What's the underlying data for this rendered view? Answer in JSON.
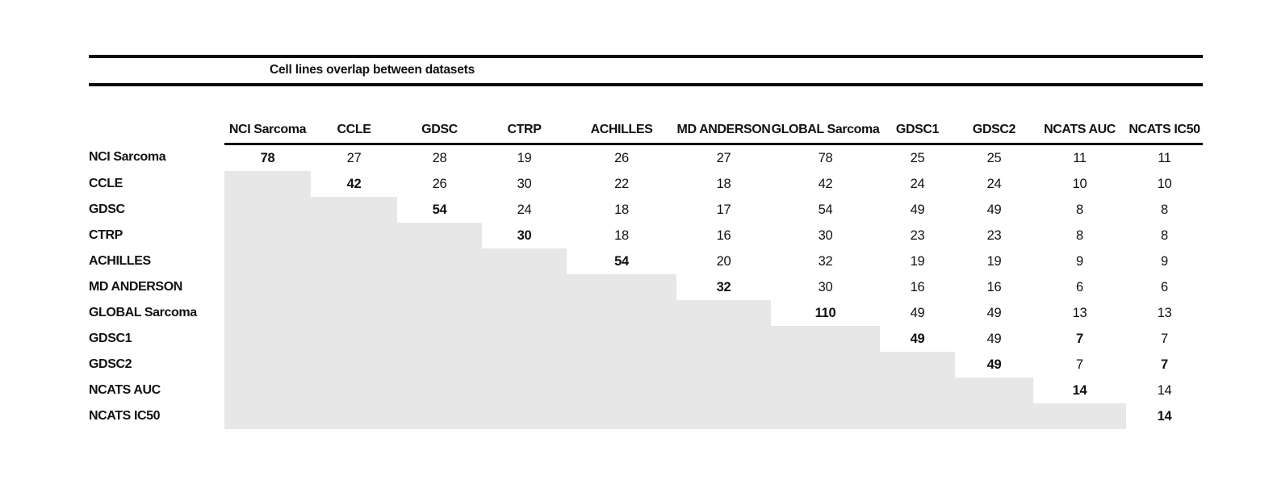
{
  "chart_data": {
    "type": "table",
    "title": "Cell lines overlap between datasets",
    "columns": [
      "NCI Sarcoma",
      "CCLE",
      "GDSC",
      "CTRP",
      "ACHILLES",
      "MD ANDERSON",
      "GLOBAL Sarcoma",
      "GDSC1",
      "GDSC2",
      "NCATS AUC",
      "NCATS IC50"
    ],
    "row_labels": [
      "NCI Sarcoma",
      "CCLE",
      "GDSC",
      "CTRP",
      "ACHILLES",
      "MD ANDERSON",
      "GLOBAL Sarcoma",
      "GDSC1",
      "GDSC2",
      "NCATS AUC",
      "NCATS IC50"
    ],
    "matrix": [
      [
        78,
        27,
        28,
        19,
        26,
        27,
        78,
        25,
        25,
        11,
        11
      ],
      [
        null,
        42,
        26,
        30,
        22,
        18,
        42,
        24,
        24,
        10,
        10
      ],
      [
        null,
        null,
        54,
        24,
        18,
        17,
        54,
        49,
        49,
        8,
        8
      ],
      [
        null,
        null,
        null,
        30,
        18,
        16,
        30,
        23,
        23,
        8,
        8
      ],
      [
        null,
        null,
        null,
        null,
        54,
        20,
        32,
        19,
        19,
        9,
        9
      ],
      [
        null,
        null,
        null,
        null,
        null,
        32,
        30,
        16,
        16,
        6,
        6
      ],
      [
        null,
        null,
        null,
        null,
        null,
        null,
        110,
        49,
        49,
        13,
        13
      ],
      [
        null,
        null,
        null,
        null,
        null,
        null,
        null,
        49,
        49,
        7,
        7
      ],
      [
        null,
        null,
        null,
        null,
        null,
        null,
        null,
        null,
        49,
        7,
        7
      ],
      [
        null,
        null,
        null,
        null,
        null,
        null,
        null,
        null,
        null,
        14,
        14
      ],
      [
        null,
        null,
        null,
        null,
        null,
        null,
        null,
        null,
        null,
        null,
        14
      ]
    ],
    "bold_cells": [
      [
        0,
        0
      ],
      [
        1,
        1
      ],
      [
        2,
        2
      ],
      [
        3,
        3
      ],
      [
        4,
        4
      ],
      [
        5,
        5
      ],
      [
        6,
        6
      ],
      [
        7,
        7
      ],
      [
        7,
        9
      ],
      [
        8,
        8
      ],
      [
        8,
        10
      ],
      [
        9,
        9
      ],
      [
        10,
        10
      ]
    ],
    "shaded_color": "#e7e7e7",
    "text_color": "#111111"
  }
}
